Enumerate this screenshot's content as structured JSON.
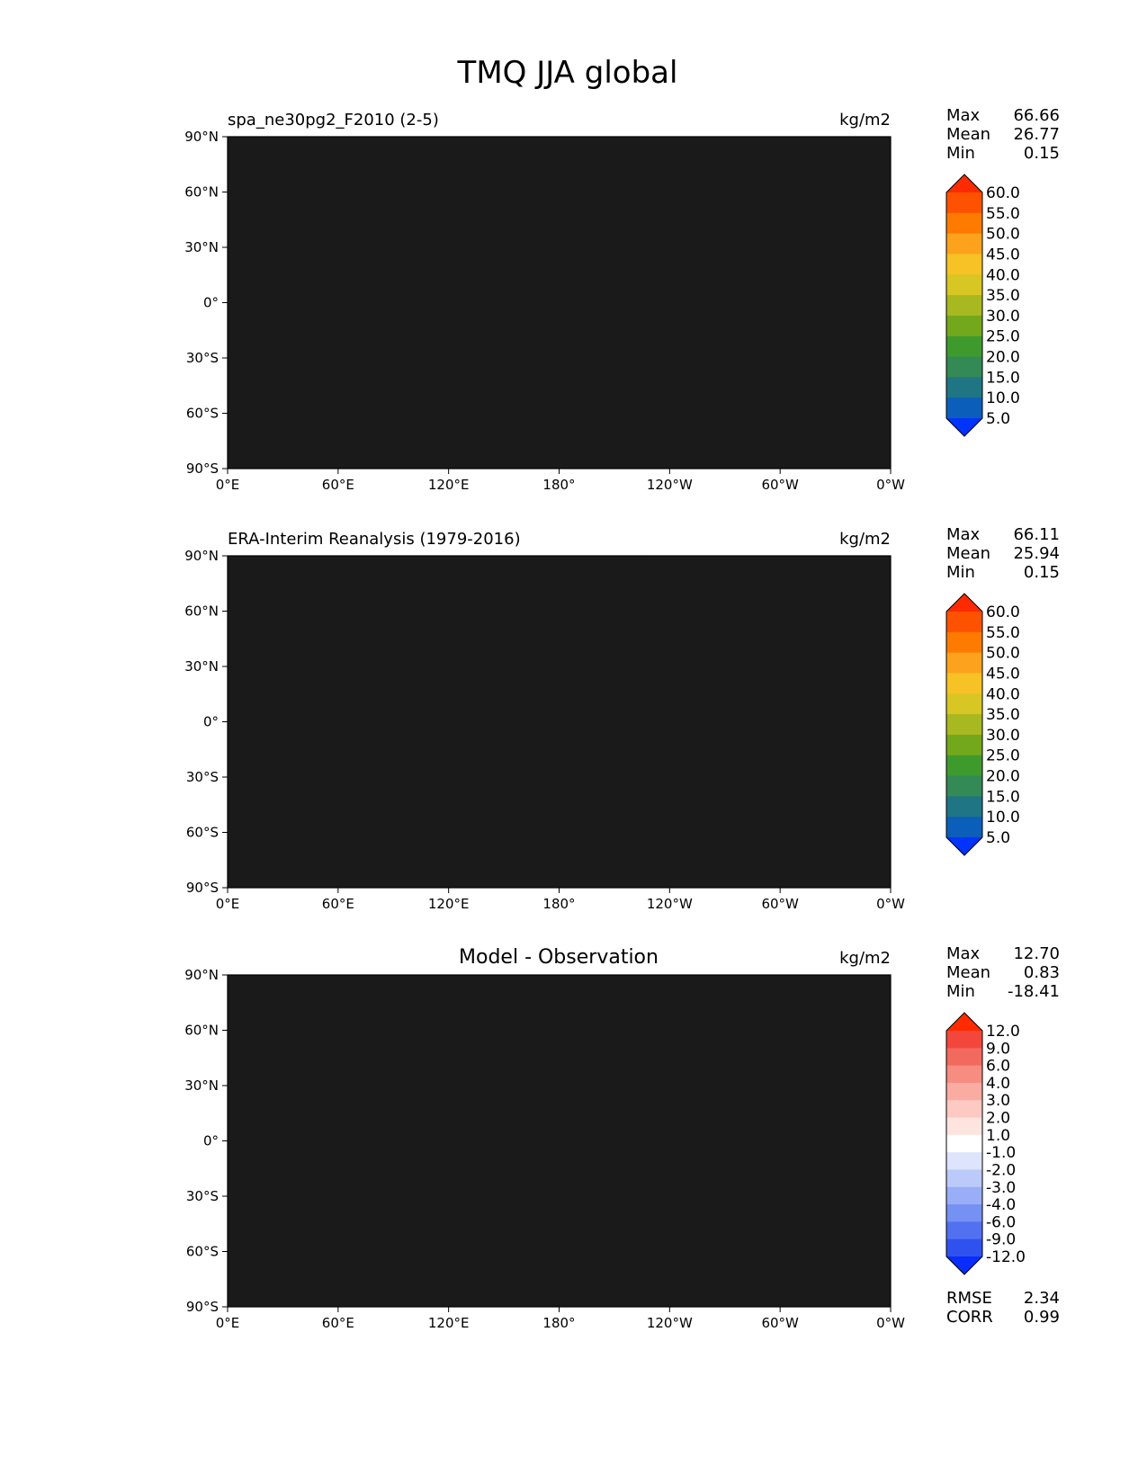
{
  "title": "TMQ JJA global",
  "lon_ticks": [
    "0°E",
    "60°E",
    "120°E",
    "180°",
    "120°W",
    "60°W",
    "0°W"
  ],
  "lat_ticks": [
    "90°N",
    "60°N",
    "30°N",
    "0°",
    "30°S",
    "60°S",
    "90°S"
  ],
  "panels": [
    {
      "left_title": "spa_ne30pg2_F2010 (2-5)",
      "center_title": "",
      "units": "kg/m2",
      "stats": [
        {
          "label": "Max",
          "value": "66.66"
        },
        {
          "label": "Mean",
          "value": "26.77"
        },
        {
          "label": "Min",
          "value": "0.15"
        }
      ],
      "colorbar": {
        "labels": [
          "60.0",
          "55.0",
          "50.0",
          "45.0",
          "40.0",
          "35.0",
          "30.0",
          "25.0",
          "20.0",
          "15.0",
          "10.0",
          "5.0"
        ],
        "colors": [
          "#fe2a00",
          "#fe5200",
          "#fe7b00",
          "#fda21d",
          "#f6c225",
          "#d8c624",
          "#a8b820",
          "#74a81c",
          "#3f9a2e",
          "#348a55",
          "#1f7583",
          "#0b5fba",
          "#0033fb"
        ]
      }
    },
    {
      "left_title": "ERA-Interim Reanalysis (1979-2016)",
      "center_title": "",
      "units": "kg/m2",
      "stats": [
        {
          "label": "Max",
          "value": "66.11"
        },
        {
          "label": "Mean",
          "value": "25.94"
        },
        {
          "label": "Min",
          "value": "0.15"
        }
      ],
      "colorbar": {
        "labels": [
          "60.0",
          "55.0",
          "50.0",
          "45.0",
          "40.0",
          "35.0",
          "30.0",
          "25.0",
          "20.0",
          "15.0",
          "10.0",
          "5.0"
        ],
        "colors": [
          "#fe2a00",
          "#fe5200",
          "#fe7b00",
          "#fda21d",
          "#f6c225",
          "#d8c624",
          "#a8b820",
          "#74a81c",
          "#3f9a2e",
          "#348a55",
          "#1f7583",
          "#0b5fba",
          "#0033fb"
        ]
      }
    },
    {
      "left_title": "",
      "center_title": "Model - Observation",
      "units": "kg/m2",
      "stats": [
        {
          "label": "Max",
          "value": "12.70"
        },
        {
          "label": "Mean",
          "value": "0.83"
        },
        {
          "label": "Min",
          "value": "-18.41"
        }
      ],
      "colorbar": {
        "labels": [
          "12.0",
          "9.0",
          "6.0",
          "4.0",
          "3.0",
          "2.0",
          "1.0",
          "-1.0",
          "-2.0",
          "-3.0",
          "-4.0",
          "-6.0",
          "-9.0",
          "-12.0"
        ],
        "colors": [
          "#fe2a00",
          "#f4473c",
          "#f26a5e",
          "#f78c80",
          "#fbaca2",
          "#fccac2",
          "#fde4df",
          "#ffffff",
          "#dde4fb",
          "#bccafa",
          "#99aef7",
          "#7691f4",
          "#5271f1",
          "#2f52ef",
          "#0a2cfc"
        ]
      },
      "extra_stats": [
        {
          "label": "RMSE",
          "value": "2.34"
        },
        {
          "label": "CORR",
          "value": "0.99"
        }
      ]
    }
  ]
}
